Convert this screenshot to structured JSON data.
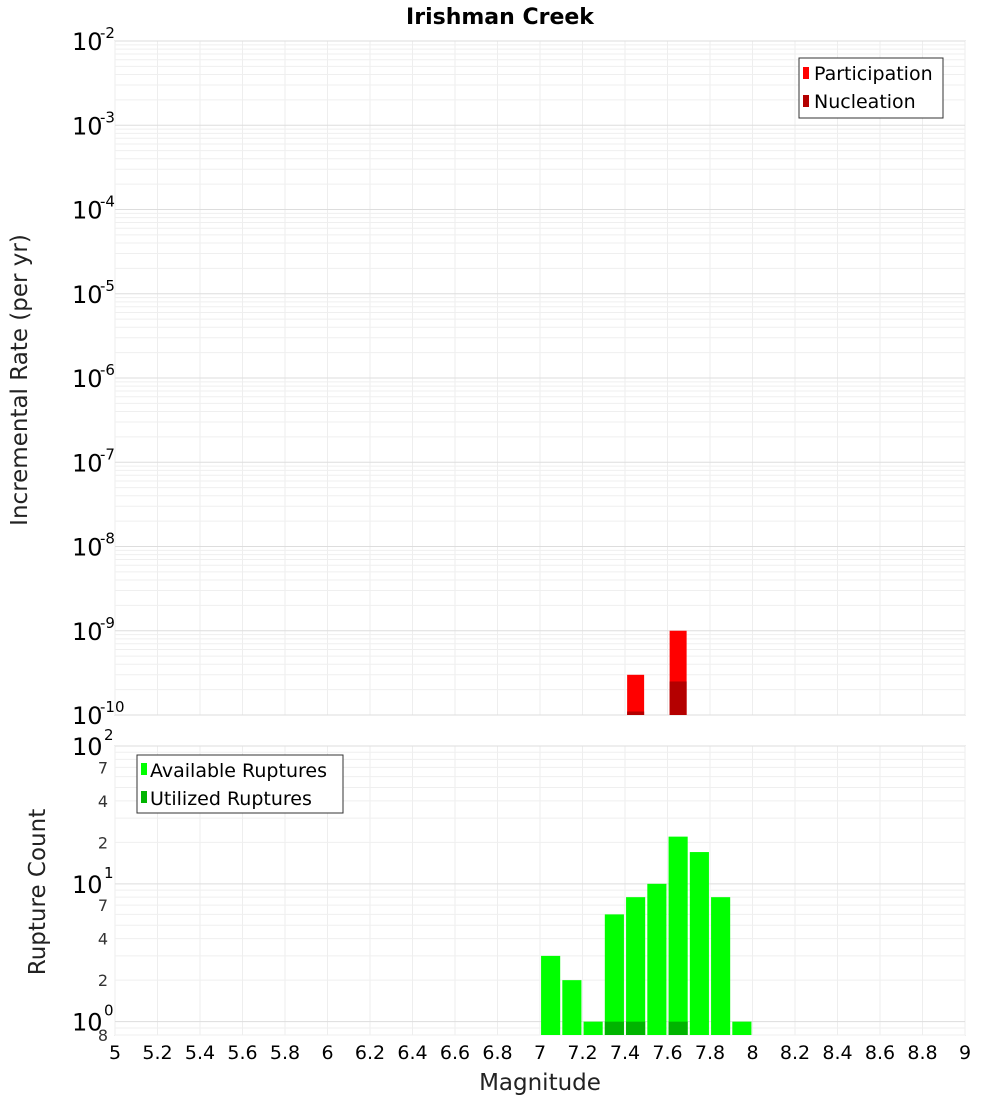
{
  "chart_data": [
    {
      "type": "bar",
      "title": "Irishman Creek",
      "xlabel": "Magnitude",
      "ylabel": "Incremental Rate (per yr)",
      "yscale": "log",
      "ylim": [
        1e-10,
        0.01
      ],
      "xlim": [
        5,
        9
      ],
      "y_major_ticks": [
        {
          "base": "10",
          "exp": "-10"
        },
        {
          "base": "10",
          "exp": "-9"
        },
        {
          "base": "10",
          "exp": "-8"
        },
        {
          "base": "10",
          "exp": "-7"
        },
        {
          "base": "10",
          "exp": "-6"
        },
        {
          "base": "10",
          "exp": "-5"
        },
        {
          "base": "10",
          "exp": "-4"
        },
        {
          "base": "10",
          "exp": "-3"
        },
        {
          "base": "10",
          "exp": "-2"
        }
      ],
      "legend_position": "top-right",
      "grid": true,
      "bar_width": 0.08,
      "series": [
        {
          "name": "Participation",
          "color": "#ff0000",
          "x": [
            7.45,
            7.65
          ],
          "values": [
            3e-10,
            1e-09
          ]
        },
        {
          "name": "Nucleation",
          "color": "#b40000",
          "x": [
            7.45,
            7.65
          ],
          "values": [
            1.1e-10,
            2.5e-10
          ]
        }
      ]
    },
    {
      "type": "bar",
      "xlabel": "Magnitude",
      "ylabel": "Rupture Count",
      "yscale": "log",
      "ylim": [
        0.8,
        100
      ],
      "xlim": [
        5,
        9
      ],
      "x_ticks": [
        "5",
        "5.2",
        "5.4",
        "5.6",
        "5.8",
        "6",
        "6.2",
        "6.4",
        "6.6",
        "6.8",
        "7",
        "7.2",
        "7.4",
        "7.6",
        "7.8",
        "8",
        "8.2",
        "8.4",
        "8.6",
        "8.8",
        "9"
      ],
      "y_major_ticks": [
        {
          "base": "10",
          "exp": "0"
        },
        {
          "base": "10",
          "exp": "1"
        },
        {
          "base": "10",
          "exp": "2"
        }
      ],
      "y_minor_ticks": [
        "8",
        "2",
        "4",
        "7",
        "2",
        "4",
        "7"
      ],
      "legend_position": "top-left",
      "grid": true,
      "bar_width": 0.09,
      "series": [
        {
          "name": "Available Ruptures",
          "color": "#00ff00",
          "x": [
            7.05,
            7.15,
            7.25,
            7.35,
            7.45,
            7.55,
            7.65,
            7.75,
            7.85,
            7.95
          ],
          "values": [
            3,
            2,
            1,
            6,
            8,
            10,
            22,
            17,
            8,
            1
          ]
        },
        {
          "name": "Utilized Ruptures",
          "color": "#00b400",
          "x": [
            7.35,
            7.45,
            7.65
          ],
          "values": [
            1,
            1,
            1
          ]
        }
      ]
    }
  ]
}
